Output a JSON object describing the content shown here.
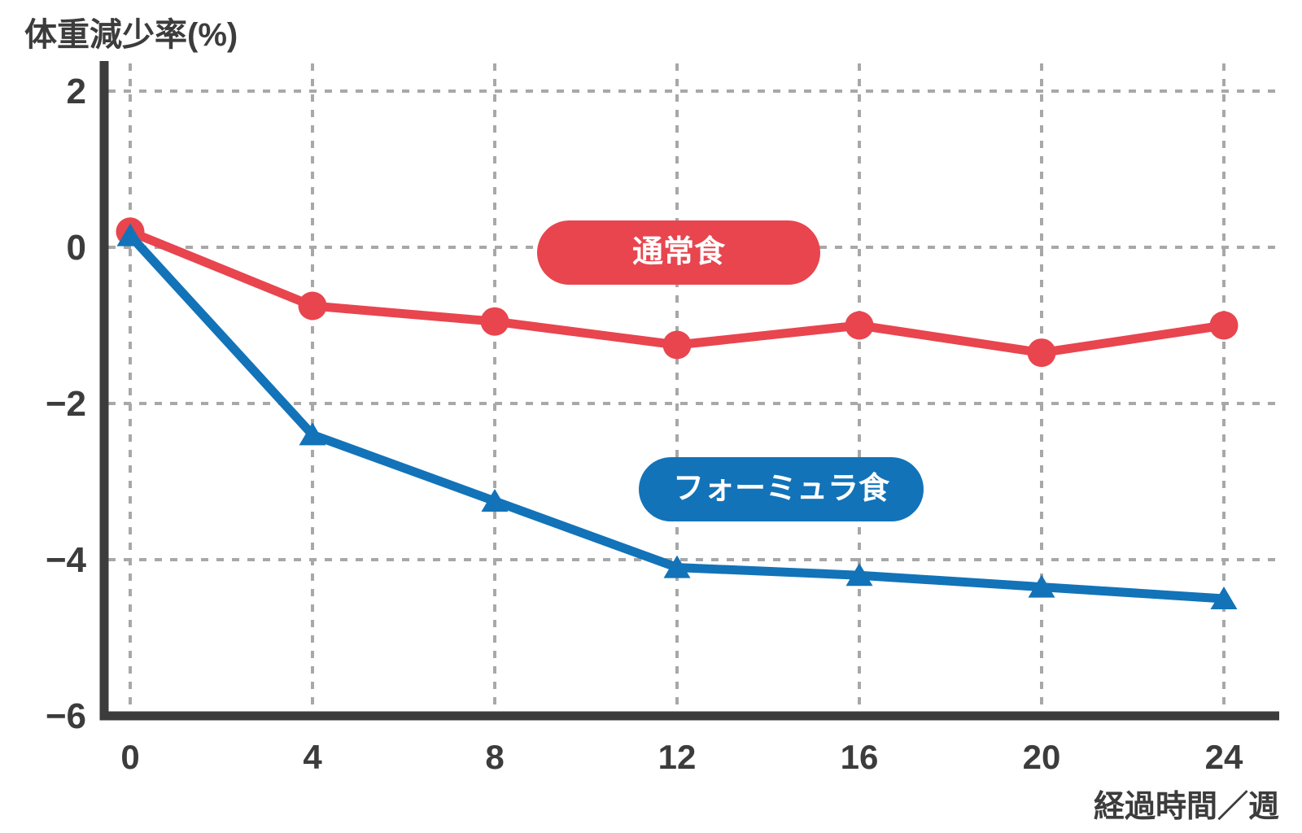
{
  "chart_data": {
    "type": "line",
    "title": "",
    "ylabel": "体重減少率(%)",
    "xlabel": "経過時間／週",
    "x": [
      0,
      4,
      8,
      12,
      16,
      20,
      24
    ],
    "x_tick_labels": [
      "0",
      "4",
      "8",
      "12",
      "16",
      "20",
      "24"
    ],
    "y_ticks": [
      2,
      0,
      -2,
      -4,
      -6
    ],
    "y_tick_labels": [
      "2",
      "0",
      "−2",
      "−4",
      "−6"
    ],
    "y_gridlines": [
      2,
      0,
      -2,
      -4
    ],
    "xlim": [
      0,
      24
    ],
    "ylim": [
      -6,
      2
    ],
    "grid": true,
    "legend_position": "inside-plot",
    "series": [
      {
        "name": "通常食",
        "color": "#E8454E",
        "marker": "circle",
        "values": [
          0.2,
          -0.75,
          -0.95,
          -1.25,
          -1.0,
          -1.35,
          -1.0
        ]
      },
      {
        "name": "フォーミュラ食",
        "color": "#1273B8",
        "marker": "triangle",
        "values": [
          0.15,
          -2.4,
          -3.25,
          -4.1,
          -4.2,
          -4.35,
          -4.5
        ]
      }
    ]
  },
  "colors": {
    "axis": "#3C3C3C",
    "grid": "#A8A8A8",
    "tick_text": "#3C3C3C",
    "legend_text": "#FFFFFF",
    "normal_diet": "#E8454E",
    "formula_diet": "#1273B8"
  }
}
